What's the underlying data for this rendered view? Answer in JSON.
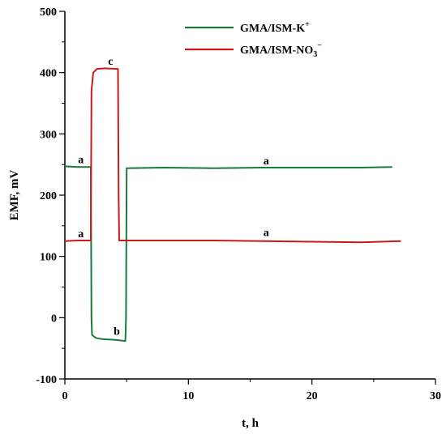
{
  "chart_data": {
    "type": "line",
    "xlabel": "t, h",
    "ylabel": "EMF, mV",
    "xlim": [
      0,
      30
    ],
    "ylim": [
      -100,
      500
    ],
    "x_ticks": [
      "0",
      "10",
      "20",
      "30"
    ],
    "y_ticks": [
      "500",
      "400",
      "300",
      "200",
      "100",
      "0",
      "-100"
    ],
    "grid": false,
    "legend_position": "top-right",
    "series": [
      {
        "name": "GMA/ISM-K",
        "name_sup": "+",
        "color": "#1a7a3a",
        "points": [
          [
            0,
            247
          ],
          [
            1,
            246
          ],
          [
            2.1,
            246
          ],
          [
            2.15,
            0
          ],
          [
            2.2,
            -28
          ],
          [
            2.5,
            -33
          ],
          [
            3,
            -35
          ],
          [
            4,
            -36
          ],
          [
            4.9,
            -38
          ],
          [
            4.95,
            0
          ],
          [
            5,
            244
          ],
          [
            8,
            245
          ],
          [
            12,
            244
          ],
          [
            16,
            245
          ],
          [
            20,
            245
          ],
          [
            24,
            245
          ],
          [
            26.5,
            246
          ]
        ]
      },
      {
        "name": "GMA/ISM-NO",
        "name_sub": "3",
        "name_sup": "−",
        "color": "#cc1a1a",
        "points": [
          [
            0,
            125
          ],
          [
            1,
            126
          ],
          [
            2.1,
            126
          ],
          [
            2.15,
            370
          ],
          [
            2.3,
            400
          ],
          [
            2.6,
            406
          ],
          [
            3.2,
            407
          ],
          [
            4.3,
            406
          ],
          [
            4.35,
            200
          ],
          [
            4.4,
            126
          ],
          [
            8,
            126
          ],
          [
            12,
            126
          ],
          [
            16,
            125
          ],
          [
            20,
            124
          ],
          [
            24,
            123
          ],
          [
            27.2,
            125
          ]
        ]
      }
    ],
    "annotations": [
      {
        "text": "a",
        "x": 1.3,
        "y": 252
      },
      {
        "text": "a",
        "x": 16.3,
        "y": 250
      },
      {
        "text": "a",
        "x": 1.3,
        "y": 131
      },
      {
        "text": "a",
        "x": 16.3,
        "y": 133
      },
      {
        "text": "b",
        "x": 4.2,
        "y": -28
      },
      {
        "text": "c",
        "x": 3.7,
        "y": 413
      }
    ]
  }
}
